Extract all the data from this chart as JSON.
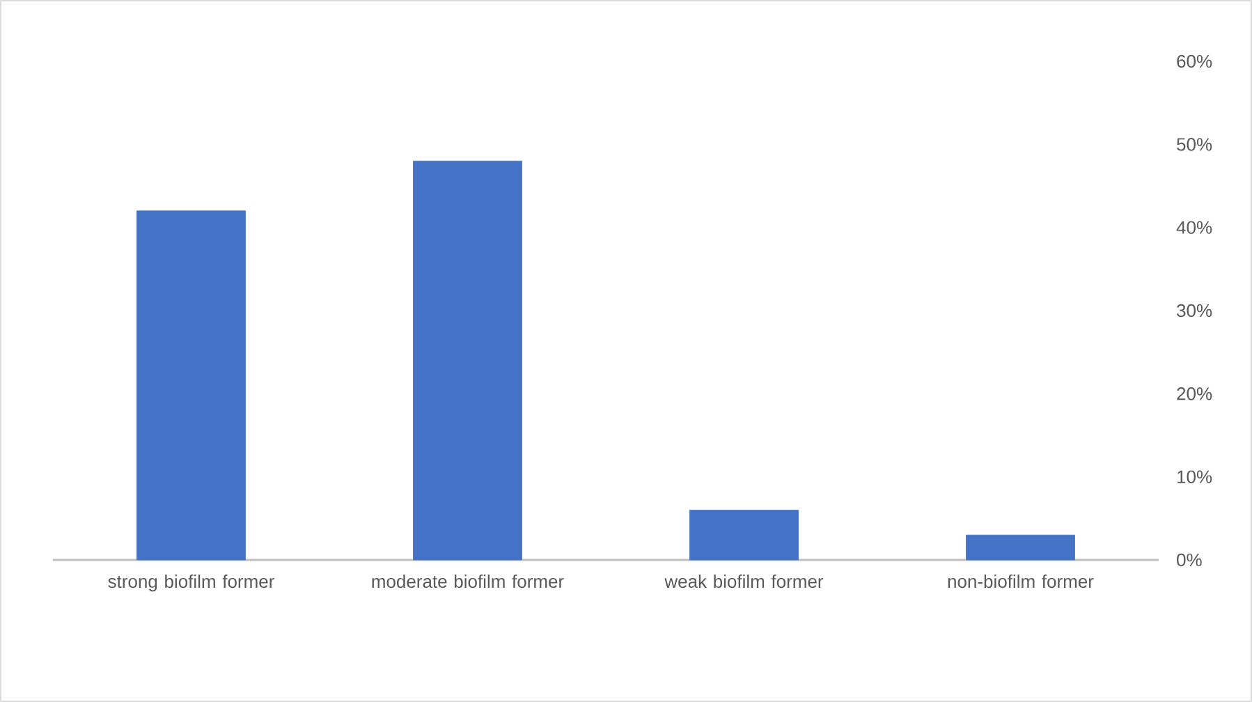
{
  "chart_data": {
    "type": "bar",
    "categories": [
      "strong biofilm former",
      "moderate biofilm former",
      "weak biofilm former",
      "non-biofilm former"
    ],
    "values": [
      42,
      48,
      6,
      3
    ],
    "color": "#4472c4",
    "ylim": [
      0,
      60
    ],
    "yticks": [
      {
        "value": 0,
        "label": "0%"
      },
      {
        "value": 10,
        "label": "10%"
      },
      {
        "value": 20,
        "label": "20%"
      },
      {
        "value": 30,
        "label": "30%"
      },
      {
        "value": 40,
        "label": "40%"
      },
      {
        "value": 50,
        "label": "50%"
      },
      {
        "value": 60,
        "label": "60%"
      }
    ]
  }
}
